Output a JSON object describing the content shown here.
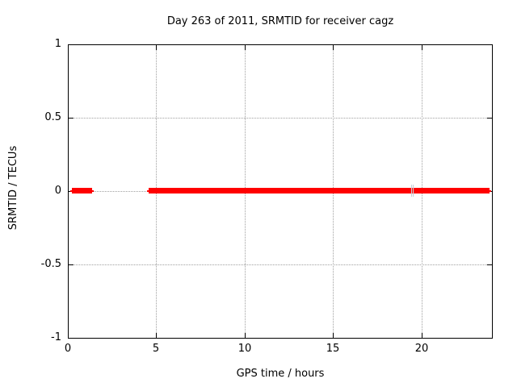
{
  "chart_data": {
    "type": "line",
    "title": "Day 263 of 2011, SRMTID for receiver cagz",
    "xlabel": "GPS time / hours",
    "ylabel": "SRMTID / TECUs",
    "xlim": [
      0,
      24
    ],
    "ylim": [
      -1,
      1
    ],
    "grid": true,
    "legend": "none",
    "x_ticks": [
      {
        "value": 0,
        "label": "0"
      },
      {
        "value": 5,
        "label": "5"
      },
      {
        "value": 10,
        "label": "10"
      },
      {
        "value": 15,
        "label": "15"
      },
      {
        "value": 20,
        "label": "20"
      }
    ],
    "y_ticks": [
      {
        "value": 1,
        "label": "1"
      },
      {
        "value": 0.5,
        "label": "0.5"
      },
      {
        "value": 0,
        "label": "0"
      },
      {
        "value": -0.5,
        "label": "-0.5"
      },
      {
        "value": -1,
        "label": "-1"
      }
    ],
    "series": [
      {
        "name": "SRMTID",
        "y_value": 0,
        "segments": [
          {
            "x_start": 0.14,
            "x_end": 1.46
          },
          {
            "x_start": 4.48,
            "x_end": 23.96
          }
        ],
        "gap_marks": [
          {
            "x": 19.41
          },
          {
            "x": 19.54
          }
        ]
      }
    ]
  },
  "colors": {
    "background": "#ffffff",
    "border": "#000000",
    "grid": "#a0a0a0",
    "series": "#ff0000",
    "gap_mark": "rgba(150,172,188,0.55)",
    "text": "#000000"
  }
}
